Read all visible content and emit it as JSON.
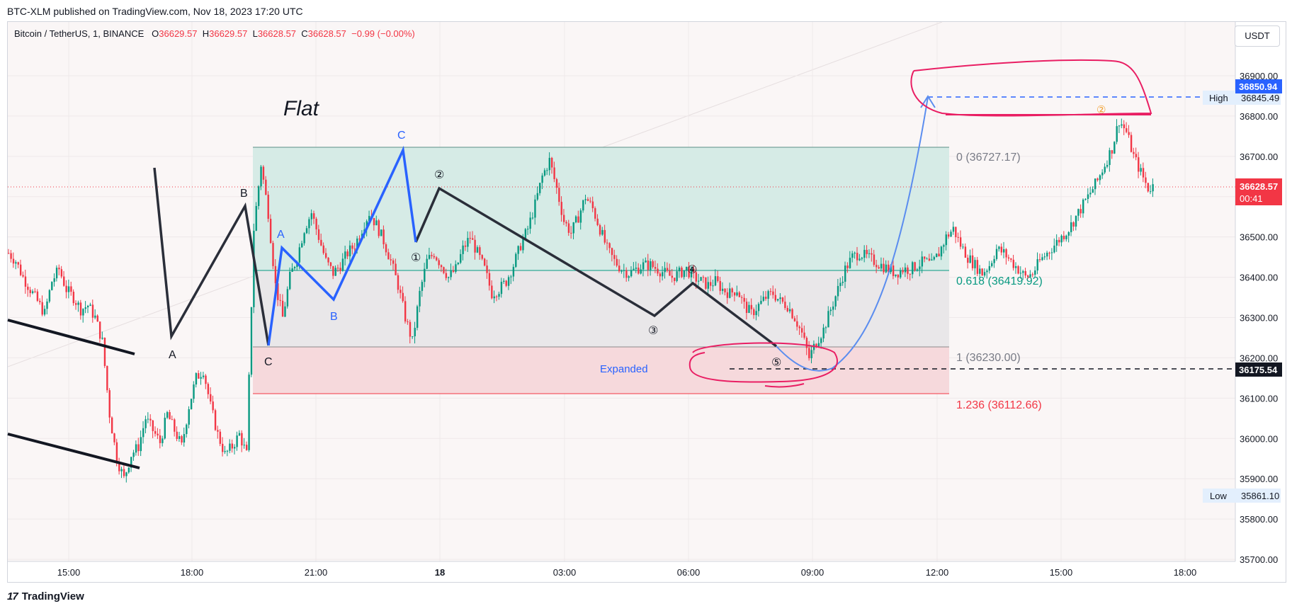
{
  "header": {
    "published": "BTC-XLM published on TradingView.com, Nov 18, 2023 17:20 UTC"
  },
  "symbol": {
    "name": "Bitcoin / TetherUS, 1, BINANCE",
    "o_label": "O",
    "o": "36629.57",
    "h_label": "H",
    "h": "36629.57",
    "l_label": "L",
    "l": "36628.57",
    "c_label": "C",
    "c": "36628.57",
    "change": "−0.99 (−0.00%)"
  },
  "currency": "USDT",
  "footer": {
    "brand": "TradingView",
    "logo": "17"
  },
  "colors": {
    "up": "#089981",
    "down": "#f23645",
    "wave_black": "#2a2e39",
    "wave_blue": "#2962ff",
    "marker_pink": "#e91e63",
    "fib_green_zone": "#d6ebe6",
    "fib_grey_zone": "#e9e7e9",
    "fib_red_zone": "#f6d9dc",
    "plot_background": "#faf6f6"
  },
  "chart_data": {
    "type": "candlestick",
    "title": "Flat",
    "ylim": [
      35700,
      37000
    ],
    "y_ticks": [
      "36900.00",
      "36800.00",
      "36700.00",
      "36600.00",
      "36500.00",
      "36400.00",
      "36300.00",
      "36200.00",
      "36100.00",
      "36000.00",
      "35900.00",
      "35800.00",
      "35700.00"
    ],
    "x_ticks": [
      "15:00",
      "18:00",
      "21:00",
      "18",
      "03:00",
      "06:00",
      "09:00",
      "12:00",
      "15:00",
      "18:00"
    ],
    "last_price": {
      "value": "36628.57",
      "timer": "00:41"
    },
    "price_tags": {
      "target": "36850.94",
      "level": "36175.54"
    },
    "high": {
      "label": "High",
      "value": "36845.49"
    },
    "low": {
      "label": "Low",
      "value": "35861.10"
    },
    "fib_levels": [
      {
        "label": "0 (36727.17)",
        "price": 36727.17
      },
      {
        "label": "0.618 (36419.92)",
        "price": 36419.92
      },
      {
        "label": "1 (36230.00)",
        "price": 36230.0
      },
      {
        "label": "1.236 (36112.66)",
        "price": 36112.66
      }
    ],
    "zone_label": "Expanded",
    "wave_labels": {
      "big_a": "A",
      "big_b": "B",
      "big_c": "C",
      "sub_a": "A",
      "sub_b": "B",
      "sub_c": "C",
      "imp_1": "①",
      "imp_2": "②",
      "imp_3": "③",
      "imp_4": "④",
      "imp_5": "⑤",
      "top_2": "②"
    },
    "candles": [
      [
        0,
        36460
      ],
      [
        3,
        36440
      ],
      [
        6,
        36400
      ],
      [
        9,
        36370
      ],
      [
        12,
        36340
      ],
      [
        15,
        36310
      ],
      [
        18,
        36390
      ],
      [
        21,
        36420
      ],
      [
        24,
        36370
      ],
      [
        27,
        36350
      ],
      [
        30,
        36320
      ],
      [
        33,
        36330
      ],
      [
        36,
        36300
      ],
      [
        39,
        36240
      ],
      [
        42,
        36060
      ],
      [
        45,
        35950
      ],
      [
        48,
        35900
      ],
      [
        51,
        35960
      ],
      [
        54,
        35980
      ],
      [
        57,
        36050
      ],
      [
        60,
        36020
      ],
      [
        63,
        35990
      ],
      [
        66,
        36060
      ],
      [
        69,
        36020
      ],
      [
        72,
        35980
      ],
      [
        75,
        36080
      ],
      [
        78,
        36150
      ],
      [
        81,
        36170
      ],
      [
        84,
        36080
      ],
      [
        87,
        36010
      ],
      [
        90,
        35960
      ],
      [
        93,
        35980
      ],
      [
        96,
        36010
      ],
      [
        99,
        35960
      ],
      [
        102,
        36520
      ],
      [
        105,
        36680
      ],
      [
        108,
        36560
      ],
      [
        111,
        36380
      ],
      [
        114,
        36300
      ],
      [
        117,
        36400
      ],
      [
        120,
        36450
      ],
      [
        123,
        36520
      ],
      [
        126,
        36560
      ],
      [
        129,
        36500
      ],
      [
        132,
        36440
      ],
      [
        135,
        36410
      ],
      [
        138,
        36430
      ],
      [
        141,
        36460
      ],
      [
        144,
        36480
      ],
      [
        147,
        36520
      ],
      [
        150,
        36560
      ],
      [
        153,
        36530
      ],
      [
        156,
        36490
      ],
      [
        159,
        36440
      ],
      [
        162,
        36380
      ],
      [
        165,
        36300
      ],
      [
        168,
        36240
      ],
      [
        171,
        36360
      ],
      [
        174,
        36440
      ],
      [
        177,
        36460
      ],
      [
        180,
        36430
      ],
      [
        183,
        36400
      ],
      [
        186,
        36420
      ],
      [
        189,
        36470
      ],
      [
        192,
        36500
      ],
      [
        195,
        36460
      ],
      [
        198,
        36420
      ],
      [
        201,
        36360
      ],
      [
        204,
        36370
      ],
      [
        207,
        36390
      ],
      [
        210,
        36430
      ],
      [
        213,
        36480
      ],
      [
        216,
        36520
      ],
      [
        219,
        36580
      ],
      [
        222,
        36650
      ],
      [
        225,
        36690
      ],
      [
        228,
        36620
      ],
      [
        231,
        36540
      ],
      [
        234,
        36510
      ],
      [
        237,
        36550
      ],
      [
        240,
        36600
      ],
      [
        243,
        36570
      ],
      [
        246,
        36520
      ],
      [
        249,
        36470
      ],
      [
        252,
        36440
      ],
      [
        255,
        36420
      ],
      [
        258,
        36410
      ],
      [
        261,
        36420
      ],
      [
        264,
        36430
      ],
      [
        267,
        36430
      ],
      [
        270,
        36420
      ],
      [
        273,
        36410
      ],
      [
        276,
        36400
      ],
      [
        279,
        36410
      ],
      [
        282,
        36420
      ],
      [
        285,
        36400
      ],
      [
        288,
        36390
      ],
      [
        291,
        36380
      ],
      [
        294,
        36390
      ],
      [
        297,
        36370
      ],
      [
        300,
        36360
      ],
      [
        303,
        36370
      ],
      [
        306,
        36330
      ],
      [
        309,
        36310
      ],
      [
        312,
        36330
      ],
      [
        315,
        36350
      ],
      [
        318,
        36360
      ],
      [
        321,
        36340
      ],
      [
        324,
        36330
      ],
      [
        327,
        36300
      ],
      [
        330,
        36260
      ],
      [
        333,
        36200
      ],
      [
        336,
        36240
      ],
      [
        339,
        36270
      ],
      [
        342,
        36320
      ],
      [
        345,
        36370
      ],
      [
        348,
        36420
      ],
      [
        351,
        36450
      ],
      [
        354,
        36460
      ],
      [
        357,
        36450
      ],
      [
        360,
        36440
      ],
      [
        363,
        36430
      ],
      [
        366,
        36420
      ],
      [
        369,
        36410
      ],
      [
        372,
        36420
      ],
      [
        375,
        36420
      ],
      [
        378,
        36430
      ],
      [
        381,
        36440
      ],
      [
        384,
        36430
      ],
      [
        387,
        36460
      ],
      [
        390,
        36500
      ],
      [
        393,
        36520
      ],
      [
        396,
        36480
      ],
      [
        399,
        36450
      ],
      [
        402,
        36430
      ],
      [
        405,
        36410
      ],
      [
        408,
        36430
      ],
      [
        411,
        36470
      ],
      [
        414,
        36460
      ],
      [
        417,
        36440
      ],
      [
        420,
        36420
      ],
      [
        423,
        36400
      ],
      [
        426,
        36410
      ],
      [
        429,
        36440
      ],
      [
        432,
        36460
      ],
      [
        435,
        36480
      ],
      [
        438,
        36500
      ],
      [
        441,
        36520
      ],
      [
        444,
        36550
      ],
      [
        447,
        36580
      ],
      [
        450,
        36610
      ],
      [
        453,
        36640
      ],
      [
        456,
        36680
      ],
      [
        459,
        36720
      ],
      [
        462,
        36790
      ],
      [
        465,
        36760
      ],
      [
        468,
        36700
      ],
      [
        471,
        36660
      ],
      [
        474,
        36620
      ],
      [
        477,
        36629
      ]
    ]
  }
}
